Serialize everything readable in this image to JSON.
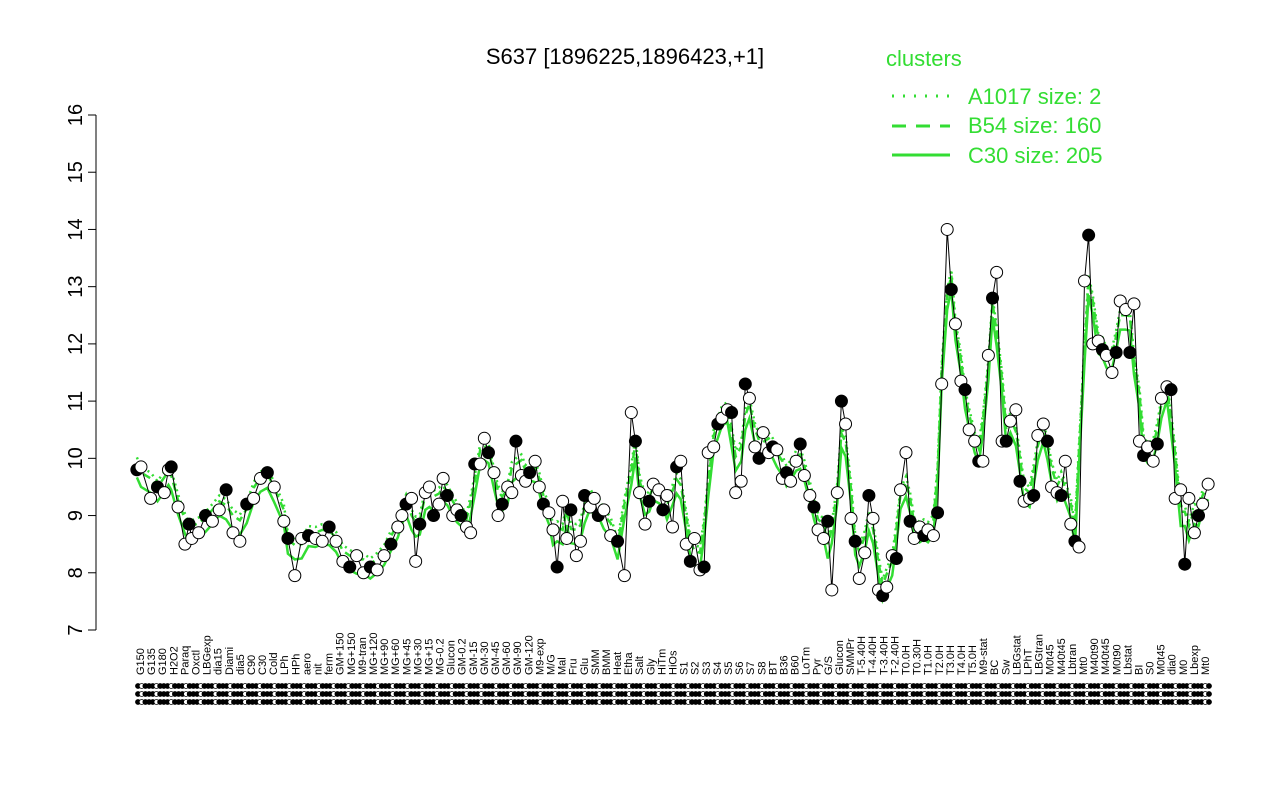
{
  "chart_data": {
    "type": "line",
    "title": "S637 [1896225,1896423,+1]",
    "xlabel": "",
    "ylabel": "",
    "ylim": [
      7,
      16
    ],
    "yticks": [
      7,
      8,
      9,
      10,
      11,
      12,
      13,
      14,
      15,
      16
    ],
    "legend": {
      "title": "clusters",
      "placement": "top-right",
      "color": "#33dd33",
      "entries": [
        {
          "label": "A1017 size: 2",
          "style": "dotted"
        },
        {
          "label": "B54 size: 160",
          "style": "dashed"
        },
        {
          "label": "C30 size: 205",
          "style": "solid"
        }
      ]
    },
    "x_tick_labels": [
      "G150",
      "G135",
      "G180",
      "H2O2",
      "Paraq",
      "Oxctl",
      "LBGexp",
      "dia15",
      "Diami",
      "dia5",
      "C90",
      "C30",
      "Cold",
      "LPh",
      "HPh",
      "aero",
      "nit",
      "ferm",
      "GM+150",
      "MG+150",
      "M9-tran",
      "MG+120",
      "MG+90",
      "MG+60",
      "MG+45",
      "MG+30",
      "MG+15",
      "MG-0.2",
      "Glucon",
      "GM-0.2",
      "GM-15",
      "GM-30",
      "GM-45",
      "GM-60",
      "GM-90",
      "GM-120",
      "M9-exp",
      "M/G",
      "Mal",
      "Fru",
      "Glu",
      "SMM",
      "BMM",
      "Heat",
      "Etha",
      "Salt",
      "Gly",
      "HiTm",
      "HiOs",
      "S1",
      "S2",
      "S3",
      "S4",
      "S5",
      "S6",
      "S7",
      "S8",
      "BT",
      "B36",
      "B60",
      "LoTm",
      "Pyr",
      "G/S",
      "Glucon",
      "SMMPr",
      "T-5.40H",
      "T-4.40H",
      "T-3.40H",
      "T-2.40H",
      "T0.0H",
      "T0.30H",
      "T1.0H",
      "T2.0H",
      "T3.0H",
      "T4.0H",
      "T5.0H",
      "M9-stat",
      "BC",
      "Sw",
      "LBGstat",
      "LPhT",
      "LBGtran",
      "M0t45",
      "M40t45",
      "Lbtran",
      "Mt0",
      "M40t90",
      "M40t45",
      "M0t90",
      "Lbstat",
      "BI",
      "S0",
      "M0t45",
      "dia0",
      "M0",
      "Lbexp",
      "Mt0"
    ],
    "series": [
      {
        "style": "points",
        "points": [
          {
            "x": 1,
            "y": 9.8
          },
          {
            "x": 1.3,
            "y": 9.85
          },
          {
            "x": 2,
            "y": 9.3
          },
          {
            "x": 2.5,
            "y": 9.5
          },
          {
            "x": 3,
            "y": 9.4
          },
          {
            "x": 3.3,
            "y": 9.8
          },
          {
            "x": 3.5,
            "y": 9.85
          },
          {
            "x": 4,
            "y": 9.15
          },
          {
            "x": 4.5,
            "y": 8.5
          },
          {
            "x": 4.8,
            "y": 8.85
          },
          {
            "x": 5,
            "y": 8.6
          },
          {
            "x": 5.5,
            "y": 8.7
          },
          {
            "x": 6,
            "y": 9.0
          },
          {
            "x": 6.5,
            "y": 8.9
          },
          {
            "x": 7,
            "y": 9.1
          },
          {
            "x": 7.5,
            "y": 9.45
          },
          {
            "x": 8,
            "y": 8.7
          },
          {
            "x": 8.5,
            "y": 8.55
          },
          {
            "x": 9,
            "y": 9.2
          },
          {
            "x": 9.5,
            "y": 9.3
          },
          {
            "x": 10,
            "y": 9.65
          },
          {
            "x": 10.5,
            "y": 9.75
          },
          {
            "x": 11,
            "y": 9.5
          },
          {
            "x": 11.7,
            "y": 8.9
          },
          {
            "x": 12,
            "y": 8.6
          },
          {
            "x": 12.5,
            "y": 7.95
          },
          {
            "x": 13,
            "y": 8.6
          },
          {
            "x": 13.5,
            "y": 8.65
          },
          {
            "x": 14,
            "y": 8.6
          },
          {
            "x": 14.5,
            "y": 8.55
          },
          {
            "x": 15,
            "y": 8.8
          },
          {
            "x": 15.5,
            "y": 8.55
          },
          {
            "x": 16,
            "y": 8.2
          },
          {
            "x": 16.5,
            "y": 8.1
          },
          {
            "x": 17,
            "y": 8.3
          },
          {
            "x": 17.5,
            "y": 8.0
          },
          {
            "x": 18,
            "y": 8.1
          },
          {
            "x": 18.5,
            "y": 8.05
          },
          {
            "x": 19,
            "y": 8.3
          },
          {
            "x": 19.5,
            "y": 8.5
          },
          {
            "x": 20,
            "y": 8.8
          },
          {
            "x": 20.3,
            "y": 9.0
          },
          {
            "x": 20.6,
            "y": 9.2
          },
          {
            "x": 21,
            "y": 9.3
          },
          {
            "x": 21.3,
            "y": 8.2
          },
          {
            "x": 21.6,
            "y": 8.85
          },
          {
            "x": 22,
            "y": 9.4
          },
          {
            "x": 22.3,
            "y": 9.5
          },
          {
            "x": 22.6,
            "y": 9.0
          },
          {
            "x": 23,
            "y": 9.2
          },
          {
            "x": 23.3,
            "y": 9.65
          },
          {
            "x": 23.6,
            "y": 9.35
          },
          {
            "x": 24,
            "y": 9.0
          },
          {
            "x": 24.3,
            "y": 9.1
          },
          {
            "x": 24.6,
            "y": 9.0
          },
          {
            "x": 25,
            "y": 8.8
          },
          {
            "x": 25.3,
            "y": 8.7
          },
          {
            "x": 25.6,
            "y": 9.9
          },
          {
            "x": 26,
            "y": 9.9
          },
          {
            "x": 26.3,
            "y": 10.35
          },
          {
            "x": 26.6,
            "y": 10.1
          },
          {
            "x": 27,
            "y": 9.75
          },
          {
            "x": 27.3,
            "y": 9.0
          },
          {
            "x": 27.6,
            "y": 9.2
          },
          {
            "x": 28,
            "y": 9.5
          },
          {
            "x": 28.3,
            "y": 9.4
          },
          {
            "x": 28.6,
            "y": 10.3
          },
          {
            "x": 29,
            "y": 9.7
          },
          {
            "x": 29.3,
            "y": 9.6
          },
          {
            "x": 29.6,
            "y": 9.75
          },
          {
            "x": 30,
            "y": 9.95
          },
          {
            "x": 30.3,
            "y": 9.5
          },
          {
            "x": 30.6,
            "y": 9.2
          },
          {
            "x": 31,
            "y": 9.05
          },
          {
            "x": 31.3,
            "y": 8.75
          },
          {
            "x": 31.6,
            "y": 8.1
          },
          {
            "x": 32,
            "y": 9.25
          },
          {
            "x": 32.3,
            "y": 8.6
          },
          {
            "x": 32.6,
            "y": 9.1
          },
          {
            "x": 33,
            "y": 8.3
          },
          {
            "x": 33.3,
            "y": 8.55
          },
          {
            "x": 33.6,
            "y": 9.35
          },
          {
            "x": 34,
            "y": 9.15
          },
          {
            "x": 34.3,
            "y": 9.3
          },
          {
            "x": 34.6,
            "y": 9.0
          },
          {
            "x": 35,
            "y": 9.1
          },
          {
            "x": 35.5,
            "y": 8.65
          },
          {
            "x": 36,
            "y": 8.55
          },
          {
            "x": 36.5,
            "y": 7.95
          },
          {
            "x": 37,
            "y": 10.8
          },
          {
            "x": 37.3,
            "y": 10.3
          },
          {
            "x": 37.6,
            "y": 9.4
          },
          {
            "x": 38,
            "y": 8.85
          },
          {
            "x": 38.3,
            "y": 9.25
          },
          {
            "x": 38.6,
            "y": 9.55
          },
          {
            "x": 39,
            "y": 9.45
          },
          {
            "x": 39.3,
            "y": 9.1
          },
          {
            "x": 39.6,
            "y": 9.35
          },
          {
            "x": 40,
            "y": 8.8
          },
          {
            "x": 40.3,
            "y": 9.85
          },
          {
            "x": 40.6,
            "y": 9.95
          },
          {
            "x": 41,
            "y": 8.5
          },
          {
            "x": 41.3,
            "y": 8.2
          },
          {
            "x": 41.6,
            "y": 8.6
          },
          {
            "x": 42,
            "y": 8.05
          },
          {
            "x": 42.3,
            "y": 8.1
          },
          {
            "x": 42.6,
            "y": 10.1
          },
          {
            "x": 43,
            "y": 10.2
          },
          {
            "x": 43.3,
            "y": 10.6
          },
          {
            "x": 43.6,
            "y": 10.7
          },
          {
            "x": 44,
            "y": 10.85
          },
          {
            "x": 44.3,
            "y": 10.8
          },
          {
            "x": 44.6,
            "y": 9.4
          },
          {
            "x": 45,
            "y": 9.6
          },
          {
            "x": 45.3,
            "y": 11.3
          },
          {
            "x": 45.6,
            "y": 11.05
          },
          {
            "x": 46,
            "y": 10.2
          },
          {
            "x": 46.3,
            "y": 10.0
          },
          {
            "x": 46.6,
            "y": 10.45
          },
          {
            "x": 47,
            "y": 10.1
          },
          {
            "x": 47.3,
            "y": 10.2
          },
          {
            "x": 47.6,
            "y": 10.15
          },
          {
            "x": 48,
            "y": 9.65
          },
          {
            "x": 48.3,
            "y": 9.75
          },
          {
            "x": 48.6,
            "y": 9.6
          },
          {
            "x": 49,
            "y": 9.95
          },
          {
            "x": 49.3,
            "y": 10.25
          },
          {
            "x": 49.6,
            "y": 9.7
          },
          {
            "x": 50,
            "y": 9.35
          },
          {
            "x": 50.3,
            "y": 9.15
          },
          {
            "x": 50.6,
            "y": 8.75
          },
          {
            "x": 51,
            "y": 8.6
          },
          {
            "x": 51.3,
            "y": 8.9
          },
          {
            "x": 51.6,
            "y": 7.7
          },
          {
            "x": 52,
            "y": 9.4
          },
          {
            "x": 52.3,
            "y": 11.0
          },
          {
            "x": 52.6,
            "y": 10.6
          },
          {
            "x": 53,
            "y": 8.95
          },
          {
            "x": 53.3,
            "y": 8.55
          },
          {
            "x": 53.6,
            "y": 7.9
          },
          {
            "x": 54,
            "y": 8.35
          },
          {
            "x": 54.3,
            "y": 9.35
          },
          {
            "x": 54.6,
            "y": 8.95
          },
          {
            "x": 55,
            "y": 7.7
          },
          {
            "x": 55.3,
            "y": 7.6
          },
          {
            "x": 55.6,
            "y": 7.75
          },
          {
            "x": 56,
            "y": 8.3
          },
          {
            "x": 56.3,
            "y": 8.25
          },
          {
            "x": 56.6,
            "y": 9.45
          },
          {
            "x": 57,
            "y": 10.1
          },
          {
            "x": 57.3,
            "y": 8.9
          },
          {
            "x": 57.6,
            "y": 8.6
          },
          {
            "x": 58,
            "y": 8.8
          },
          {
            "x": 58.3,
            "y": 8.65
          },
          {
            "x": 58.6,
            "y": 8.75
          },
          {
            "x": 59,
            "y": 8.65
          },
          {
            "x": 59.3,
            "y": 9.05
          },
          {
            "x": 59.6,
            "y": 11.3
          },
          {
            "x": 60,
            "y": 14.0
          },
          {
            "x": 60.3,
            "y": 12.95
          },
          {
            "x": 60.6,
            "y": 12.35
          },
          {
            "x": 61,
            "y": 11.35
          },
          {
            "x": 61.3,
            "y": 11.2
          },
          {
            "x": 61.6,
            "y": 10.5
          },
          {
            "x": 62,
            "y": 10.3
          },
          {
            "x": 62.3,
            "y": 9.95
          },
          {
            "x": 62.6,
            "y": 9.95
          },
          {
            "x": 63,
            "y": 11.8
          },
          {
            "x": 63.3,
            "y": 12.8
          },
          {
            "x": 63.6,
            "y": 13.25
          },
          {
            "x": 64,
            "y": 10.3
          },
          {
            "x": 64.3,
            "y": 10.3
          },
          {
            "x": 64.6,
            "y": 10.65
          },
          {
            "x": 65,
            "y": 10.85
          },
          {
            "x": 65.3,
            "y": 9.6
          },
          {
            "x": 65.6,
            "y": 9.25
          },
          {
            "x": 66,
            "y": 9.3
          },
          {
            "x": 66.3,
            "y": 9.35
          },
          {
            "x": 66.6,
            "y": 10.4
          },
          {
            "x": 67,
            "y": 10.6
          },
          {
            "x": 67.3,
            "y": 10.3
          },
          {
            "x": 67.6,
            "y": 9.5
          },
          {
            "x": 68,
            "y": 9.4
          },
          {
            "x": 68.3,
            "y": 9.35
          },
          {
            "x": 68.6,
            "y": 9.95
          },
          {
            "x": 69,
            "y": 8.85
          },
          {
            "x": 69.3,
            "y": 8.55
          },
          {
            "x": 69.6,
            "y": 8.45
          },
          {
            "x": 70,
            "y": 13.1
          },
          {
            "x": 70.3,
            "y": 13.9
          },
          {
            "x": 70.6,
            "y": 12.0
          },
          {
            "x": 71,
            "y": 12.05
          },
          {
            "x": 71.3,
            "y": 11.9
          },
          {
            "x": 71.6,
            "y": 11.8
          },
          {
            "x": 72,
            "y": 11.5
          },
          {
            "x": 72.3,
            "y": 11.85
          },
          {
            "x": 72.6,
            "y": 12.75
          },
          {
            "x": 73,
            "y": 12.6
          },
          {
            "x": 73.3,
            "y": 11.85
          },
          {
            "x": 73.6,
            "y": 12.7
          },
          {
            "x": 74,
            "y": 10.3
          },
          {
            "x": 74.3,
            "y": 10.05
          },
          {
            "x": 74.6,
            "y": 10.2
          },
          {
            "x": 75,
            "y": 9.95
          },
          {
            "x": 75.3,
            "y": 10.25
          },
          {
            "x": 75.6,
            "y": 11.05
          },
          {
            "x": 76,
            "y": 11.25
          },
          {
            "x": 76.3,
            "y": 11.2
          },
          {
            "x": 76.6,
            "y": 9.3
          },
          {
            "x": 77,
            "y": 9.45
          },
          {
            "x": 77.3,
            "y": 8.15
          },
          {
            "x": 77.6,
            "y": 9.3
          },
          {
            "x": 78,
            "y": 8.7
          },
          {
            "x": 78.3,
            "y": 9.0
          },
          {
            "x": 78.6,
            "y": 9.2
          },
          {
            "x": 79,
            "y": 9.55
          }
        ]
      },
      {
        "name": "C30 size: 205",
        "style": "solid"
      },
      {
        "name": "B54 size: 160",
        "style": "dashed"
      },
      {
        "name": "A1017 size: 2",
        "style": "dotted"
      }
    ],
    "xlim": [
      0.5,
      79.5
    ],
    "colors": {
      "cluster_lines": "#33dd33",
      "points_filled": "#000000",
      "points_open": "#ffffff"
    }
  }
}
